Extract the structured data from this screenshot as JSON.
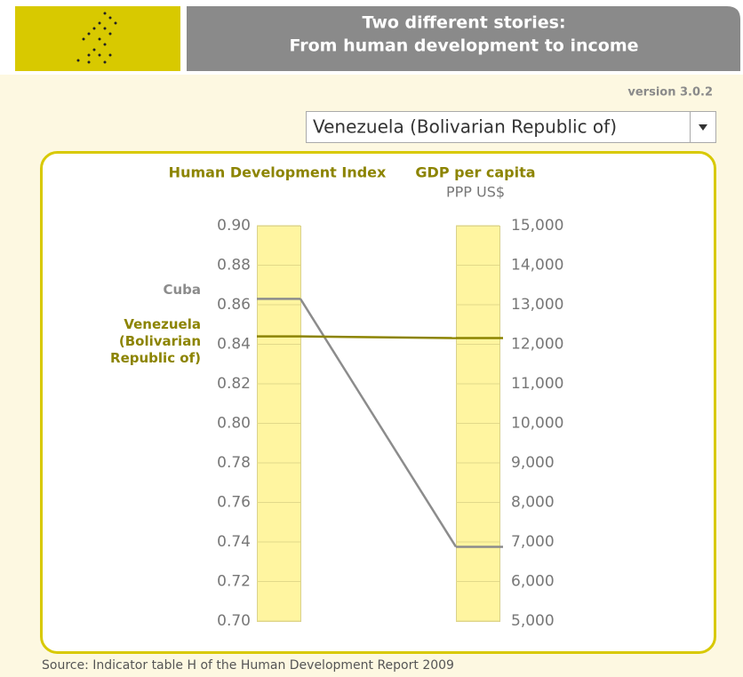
{
  "header": {
    "title_lines": [
      "Two different stories:",
      "From human development to income"
    ],
    "version": "version 3.0.2"
  },
  "selector": {
    "selected": "Venezuela (Bolivarian Republic of)"
  },
  "chart_data": {
    "type": "slope",
    "ylabel": "Human Development Index",
    "y2label": "GDP per capita",
    "y2sublabel": "PPP US$",
    "ylim": [
      0.7,
      0.9
    ],
    "yticks": [
      {
        "value": 0.7,
        "label": "0.70"
      },
      0.72,
      0.74,
      0.76,
      0.78,
      {
        "value": 0.8,
        "label": "0.80"
      },
      0.82,
      0.84,
      0.86,
      0.88,
      {
        "value": 0.9,
        "label": "0.90"
      }
    ],
    "y2lim": [
      5000,
      15000
    ],
    "y2ticks": [
      {
        "value": 5000,
        "label": "5,000"
      },
      {
        "value": 6000,
        "label": "6,000"
      },
      {
        "value": 7000,
        "label": "7,000"
      },
      {
        "value": 8000,
        "label": "8,000"
      },
      {
        "value": 9000,
        "label": "9,000"
      },
      {
        "value": 10000,
        "label": "10,000"
      },
      {
        "value": 11000,
        "label": "11,000"
      },
      {
        "value": 12000,
        "label": "12,000"
      },
      {
        "value": 13000,
        "label": "13,000"
      },
      {
        "value": 14000,
        "label": "14,000"
      },
      {
        "value": 15000,
        "label": "15,000"
      }
    ],
    "series": [
      {
        "name": "Cuba",
        "color": "#8c8c8c",
        "values": [
          0.863,
          6876
        ]
      },
      {
        "name": "Venezuela (Bolivarian Republic of)",
        "color": "#8c8400",
        "values": [
          0.844,
          12156
        ]
      }
    ]
  },
  "source": "Source: Indicator table H of the Human Development Report 2009"
}
